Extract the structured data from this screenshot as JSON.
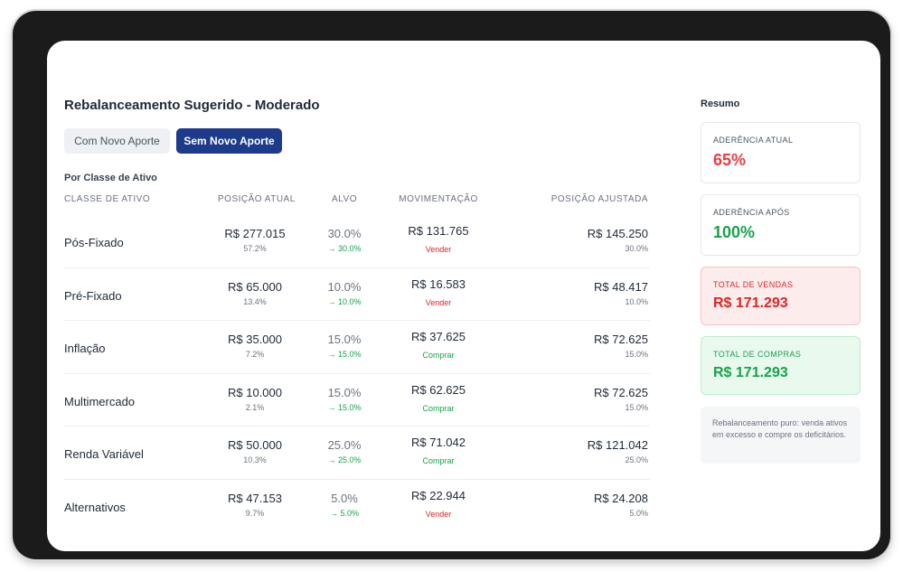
{
  "title": "Rebalanceamento Sugerido - Moderado",
  "toggle": {
    "off_label": "Com Novo Aporte",
    "on_label": "Sem Novo Aporte"
  },
  "section_label": "Por Classe de Ativo",
  "columns": {
    "asset_class": "CLASSE DE ATIVO",
    "current_position": "POSIÇÃO ATUAL",
    "target": "ALVO",
    "movement": "MOVIMENTAÇÃO",
    "adjusted_position": "POSIÇÃO AJUSTADA"
  },
  "rows": [
    {
      "name": "Pós-Fixado",
      "pos": "R$ 277.015",
      "pos_pct": "57.2%",
      "target": "30.0%",
      "target_sub": "→ 30.0%",
      "mov": "R$ 131.765",
      "action": "Vender",
      "adj": "R$ 145.250",
      "adj_pct": "30.0%"
    },
    {
      "name": "Pré-Fixado",
      "pos": "R$ 65.000",
      "pos_pct": "13.4%",
      "target": "10.0%",
      "target_sub": "→ 10.0%",
      "mov": "R$ 16.583",
      "action": "Vender",
      "adj": "R$ 48.417",
      "adj_pct": "10.0%"
    },
    {
      "name": "Inflação",
      "pos": "R$ 35.000",
      "pos_pct": "7.2%",
      "target": "15.0%",
      "target_sub": "→ 15.0%",
      "mov": "R$ 37.625",
      "action": "Comprar",
      "adj": "R$ 72.625",
      "adj_pct": "15.0%"
    },
    {
      "name": "Multimercado",
      "pos": "R$ 10.000",
      "pos_pct": "2.1%",
      "target": "15.0%",
      "target_sub": "→ 15.0%",
      "mov": "R$ 62.625",
      "action": "Comprar",
      "adj": "R$ 72.625",
      "adj_pct": "15.0%"
    },
    {
      "name": "Renda Variável",
      "pos": "R$ 50.000",
      "pos_pct": "10.3%",
      "target": "25.0%",
      "target_sub": "→ 25.0%",
      "mov": "R$ 71.042",
      "action": "Comprar",
      "adj": "R$ 121.042",
      "adj_pct": "25.0%"
    },
    {
      "name": "Alternativos",
      "pos": "R$ 47.153",
      "pos_pct": "9.7%",
      "target": "5.0%",
      "target_sub": "→ 5.0%",
      "mov": "R$ 22.944",
      "action": "Vender",
      "adj": "R$ 24.208",
      "adj_pct": "5.0%"
    }
  ],
  "summary": {
    "title": "Resumo",
    "adherence_current": {
      "label": "ADERÊNCIA ATUAL",
      "value": "65%",
      "color": "#e53e3e"
    },
    "adherence_after": {
      "label": "ADERÊNCIA APÓS",
      "value": "100%",
      "color": "#16a34a"
    },
    "total_sales": {
      "label": "TOTAL DE VENDAS",
      "value": "R$ 171.293",
      "color": "#dc2626"
    },
    "total_purchases": {
      "label": "TOTAL DE COMPRAS",
      "value": "R$ 171.293",
      "color": "#16a34a"
    },
    "note": "Rebalanceamento puro: venda ativos em excesso e compre os deficitários."
  }
}
